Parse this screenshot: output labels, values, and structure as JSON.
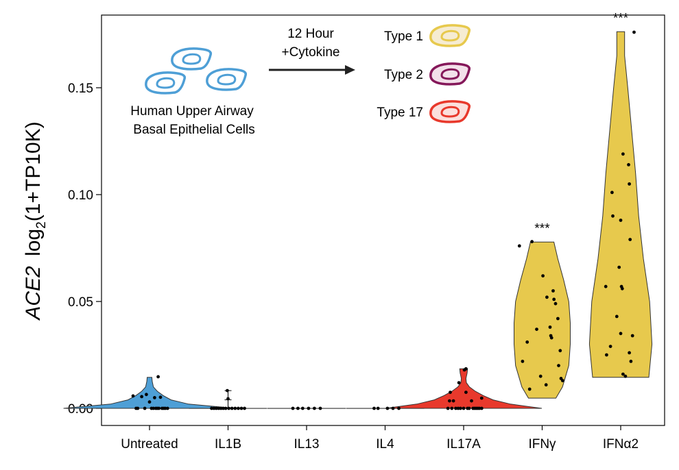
{
  "chart_data": {
    "type": "violin",
    "ylabel": {
      "gene": "ACE2",
      "expr": "log",
      "sub": "2",
      "tail": "(1+TP10K)"
    },
    "ylim": [
      -0.008,
      0.184
    ],
    "yticks": [
      {
        "value": 0.0,
        "label": "0.00"
      },
      {
        "value": 0.05,
        "label": "0.05"
      },
      {
        "value": 0.1,
        "label": "0.10"
      },
      {
        "value": 0.15,
        "label": "0.15"
      }
    ],
    "categories": [
      {
        "name": "Untreated",
        "color": "#4e9fd6",
        "significance": "",
        "violin": {
          "min": 0.0,
          "max": 0.0145,
          "profile": [
            [
              0.0,
              2.2
            ],
            [
              0.002,
              1.0
            ],
            [
              0.004,
              0.55
            ],
            [
              0.006,
              0.35
            ],
            [
              0.008,
              0.2
            ],
            [
              0.01,
              0.1
            ],
            [
              0.0125,
              0.07
            ],
            [
              0.0145,
              0.06
            ]
          ]
        },
        "points": [
          [
            -0.42,
            0.0058
          ],
          [
            -0.34,
            0.0
          ],
          [
            -0.3,
            0.0
          ],
          [
            -0.2,
            0.0055
          ],
          [
            -0.12,
            0.0
          ],
          [
            -0.08,
            0.0065
          ],
          [
            0.05,
            0.0
          ],
          [
            0.1,
            0.0
          ],
          [
            0.13,
            0.005
          ],
          [
            0.16,
            0.0
          ],
          [
            0.2,
            0.0
          ],
          [
            0.24,
            0.0
          ],
          [
            0.28,
            0.0052
          ],
          [
            0.32,
            0.0
          ],
          [
            0.36,
            0.0
          ],
          [
            0.4,
            0.0
          ],
          [
            0.46,
            0.0
          ],
          [
            0.22,
            0.0148
          ],
          [
            0.0,
            0.003
          ]
        ]
      },
      {
        "name": "IL1B",
        "color": "#4e9fd6",
        "significance": "",
        "violin": {
          "min": 0.0,
          "max": 0.0,
          "profile": [
            [
              0.0,
              4.0
            ]
          ]
        },
        "points": [
          [
            -0.42,
            0.0
          ],
          [
            -0.36,
            0.0
          ],
          [
            -0.3,
            0.0
          ],
          [
            -0.24,
            0.0
          ],
          [
            -0.18,
            0.0
          ],
          [
            -0.12,
            0.0
          ],
          [
            -0.06,
            0.0
          ],
          [
            0.02,
            0.0
          ],
          [
            0.1,
            0.0
          ],
          [
            0.18,
            0.0
          ],
          [
            0.26,
            0.0
          ],
          [
            0.34,
            0.0
          ],
          [
            0.42,
            0.0
          ],
          [
            -0.02,
            0.0083
          ],
          [
            0.0,
            0.0045
          ]
        ],
        "errorbar": {
          "mean": 0.004,
          "low": 0.0,
          "high": 0.0083
        }
      },
      {
        "name": "IL13",
        "color": "#4e9fd6",
        "significance": "",
        "violin": {
          "min": 0.0,
          "max": 0.0,
          "profile": [
            [
              0.0,
              4.0
            ]
          ]
        },
        "points": [
          [
            -0.35,
            0.0
          ],
          [
            -0.22,
            0.0
          ],
          [
            -0.1,
            0.0
          ],
          [
            0.05,
            0.0
          ],
          [
            0.2,
            0.0
          ],
          [
            0.35,
            0.0
          ]
        ]
      },
      {
        "name": "IL4",
        "color": "#4e9fd6",
        "significance": "",
        "violin": {
          "min": 0.0,
          "max": 0.0,
          "profile": [
            [
              0.0,
              4.0
            ]
          ]
        },
        "points": [
          [
            -0.28,
            0.0
          ],
          [
            -0.18,
            0.0
          ],
          [
            0.06,
            0.0
          ],
          [
            0.2,
            0.0
          ],
          [
            0.35,
            0.0
          ]
        ]
      },
      {
        "name": "IL17A",
        "color": "#e8392c",
        "significance": "",
        "violin": {
          "min": 0.0,
          "max": 0.0185,
          "profile": [
            [
              0.0,
              2.0
            ],
            [
              0.002,
              1.2
            ],
            [
              0.004,
              0.75
            ],
            [
              0.006,
              0.5
            ],
            [
              0.008,
              0.3
            ],
            [
              0.01,
              0.15
            ],
            [
              0.012,
              0.07
            ],
            [
              0.014,
              0.06
            ],
            [
              0.0165,
              0.09
            ],
            [
              0.0185,
              0.1
            ]
          ]
        },
        "points": [
          [
            -0.4,
            0.0
          ],
          [
            -0.36,
            0.0035
          ],
          [
            -0.34,
            0.0075
          ],
          [
            -0.3,
            0.0
          ],
          [
            -0.26,
            0.0035
          ],
          [
            -0.2,
            0.0
          ],
          [
            -0.14,
            0.0
          ],
          [
            -0.08,
            0.0
          ],
          [
            0.0,
            0.0
          ],
          [
            0.06,
            0.0075
          ],
          [
            0.1,
            0.0
          ],
          [
            0.14,
            0.0
          ],
          [
            0.2,
            0.0035
          ],
          [
            0.24,
            0.0
          ],
          [
            0.28,
            0.0
          ],
          [
            0.32,
            0.0
          ],
          [
            0.36,
            0.0
          ],
          [
            0.4,
            0.0
          ],
          [
            0.46,
            0.0
          ],
          [
            0.46,
            0.0048
          ],
          [
            -0.12,
            0.012
          ],
          [
            0.02,
            0.018
          ],
          [
            0.06,
            0.0185
          ]
        ]
      },
      {
        "name": "IFNγ",
        "color": "#e7c94d",
        "significance": "***",
        "violin": {
          "min": 0.0048,
          "max": 0.0778,
          "profile": [
            [
              0.0048,
              0.35
            ],
            [
              0.01,
              0.52
            ],
            [
              0.02,
              0.68
            ],
            [
              0.03,
              0.72
            ],
            [
              0.04,
              0.72
            ],
            [
              0.05,
              0.68
            ],
            [
              0.06,
              0.55
            ],
            [
              0.07,
              0.4
            ],
            [
              0.0778,
              0.3
            ]
          ]
        },
        "points": [
          [
            -0.58,
            0.076
          ],
          [
            -0.26,
            0.078
          ],
          [
            -0.5,
            0.022
          ],
          [
            -0.38,
            0.031
          ],
          [
            -0.32,
            0.009
          ],
          [
            -0.14,
            0.037
          ],
          [
            -0.04,
            0.015
          ],
          [
            0.02,
            0.062
          ],
          [
            0.1,
            0.011
          ],
          [
            0.12,
            0.052
          ],
          [
            0.2,
            0.038
          ],
          [
            0.22,
            0.034
          ],
          [
            0.24,
            0.033
          ],
          [
            0.28,
            0.055
          ],
          [
            0.3,
            0.051
          ],
          [
            0.34,
            0.049
          ],
          [
            0.4,
            0.042
          ],
          [
            0.46,
            0.027
          ],
          [
            0.42,
            0.02
          ],
          [
            0.48,
            0.014
          ],
          [
            0.52,
            0.013
          ]
        ]
      },
      {
        "name": "IFNα2",
        "color": "#e7c94d",
        "significance": "***",
        "violin": {
          "min": 0.0145,
          "max": 0.1762,
          "profile": [
            [
              0.0145,
              0.72
            ],
            [
              0.03,
              0.8
            ],
            [
              0.05,
              0.74
            ],
            [
              0.07,
              0.58
            ],
            [
              0.09,
              0.46
            ],
            [
              0.11,
              0.38
            ],
            [
              0.13,
              0.28
            ],
            [
              0.15,
              0.18
            ],
            [
              0.165,
              0.1
            ],
            [
              0.1762,
              0.1
            ]
          ]
        },
        "points": [
          [
            -0.38,
            0.057
          ],
          [
            -0.36,
            0.025
          ],
          [
            -0.26,
            0.029
          ],
          [
            -0.22,
            0.101
          ],
          [
            -0.2,
            0.09
          ],
          [
            -0.1,
            0.043
          ],
          [
            -0.04,
            0.066
          ],
          [
            0.0,
            0.035
          ],
          [
            0.0,
            0.088
          ],
          [
            0.02,
            0.057
          ],
          [
            0.04,
            0.056
          ],
          [
            0.06,
            0.119
          ],
          [
            0.06,
            0.016
          ],
          [
            0.12,
            0.015
          ],
          [
            0.2,
            0.114
          ],
          [
            0.22,
            0.105
          ],
          [
            0.24,
            0.079
          ],
          [
            0.26,
            0.022
          ],
          [
            0.3,
            0.034
          ],
          [
            0.22,
            0.026
          ],
          [
            0.34,
            0.176
          ]
        ]
      }
    ]
  },
  "annotation": {
    "cell_caption_line1": "Human Upper Airway",
    "cell_caption_line2": "Basal Epithelial Cells",
    "treatment_line1": "12 Hour",
    "treatment_line2": "+Cytokine",
    "legend": [
      {
        "label": "Type 1",
        "color": "#e7c94d",
        "fill": "#f6ecd2"
      },
      {
        "label": "Type 2",
        "color": "#85185a",
        "fill": "#f3e0ea"
      },
      {
        "label": "Type 17",
        "color": "#e8392c",
        "fill": "#fbe0dd"
      }
    ],
    "cell_color": "#4e9fd6",
    "cell_fill": "#ffffff"
  }
}
